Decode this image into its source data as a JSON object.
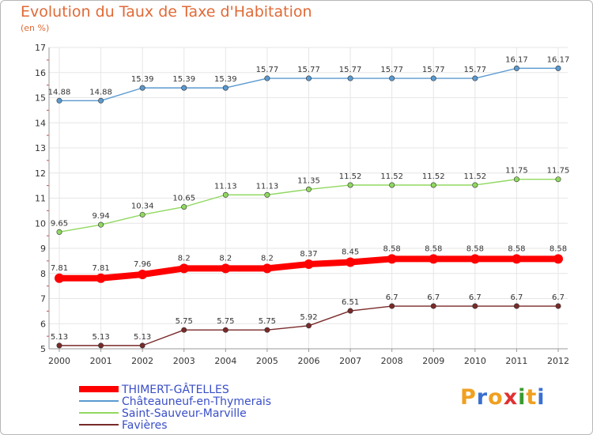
{
  "header": {
    "title": "Evolution du Taux de Taxe d'Habitation",
    "unit": "(en %)"
  },
  "brand": {
    "letters": [
      "P",
      "r",
      "o",
      "x",
      "i",
      "t",
      "i"
    ],
    "colors": [
      "#f0a020",
      "#3a6fd0",
      "#f0a020",
      "#e03030",
      "#3a9a30",
      "#f0a020",
      "#3a6fd0"
    ]
  },
  "chart_data": {
    "type": "line",
    "title": "Evolution du Taux de Taxe d'Habitation",
    "ylabel": "(en %)",
    "xlabel": "",
    "x": [
      "2000",
      "2001",
      "2002",
      "2003",
      "2004",
      "2005",
      "2006",
      "2007",
      "2008",
      "2009",
      "2010",
      "2011",
      "2012"
    ],
    "ylim": [
      5,
      17
    ],
    "yticks": [
      5,
      6,
      7,
      8,
      9,
      10,
      11,
      12,
      13,
      14,
      15,
      16,
      17
    ],
    "grid": true,
    "legend_position": "bottom-left",
    "series": [
      {
        "name": "THIMERT-GÂTELLES",
        "color": "#ff0000",
        "values": [
          7.81,
          7.81,
          7.96,
          8.2,
          8.2,
          8.2,
          8.37,
          8.45,
          8.58,
          8.58,
          8.58,
          8.58,
          8.58
        ],
        "labels": [
          "7.81",
          "7.81",
          "7.96",
          "8.2",
          "8.2",
          "8.2",
          "8.37",
          "8.45",
          "8.58",
          "8.58",
          "8.58",
          "8.58",
          "8.58"
        ],
        "emphasis": true
      },
      {
        "name": "Châteauneuf-en-Thymerais",
        "color": "#5a9ad0",
        "values": [
          14.88,
          14.88,
          15.39,
          15.39,
          15.39,
          15.77,
          15.77,
          15.77,
          15.77,
          15.77,
          15.77,
          16.17,
          16.17
        ],
        "labels": [
          "14.88",
          "14.88",
          "15.39",
          "15.39",
          "15.39",
          "15.77",
          "15.77",
          "15.77",
          "15.77",
          "15.77",
          "15.77",
          "16.17",
          "16.17"
        ],
        "emphasis": false
      },
      {
        "name": "Saint-Sauveur-Marville",
        "color": "#90d860",
        "values": [
          9.65,
          9.94,
          10.34,
          10.65,
          11.13,
          11.13,
          11.35,
          11.52,
          11.52,
          11.52,
          11.52,
          11.75,
          11.75
        ],
        "labels": [
          "9.65",
          "9.94",
          "10.34",
          "10.65",
          "11.13",
          "11.13",
          "11.35",
          "11.52",
          "11.52",
          "11.52",
          "11.52",
          "11.75",
          "11.75"
        ],
        "emphasis": false
      },
      {
        "name": "Favières",
        "color": "#7a2a2a",
        "values": [
          5.13,
          5.13,
          5.13,
          5.75,
          5.75,
          5.75,
          5.92,
          6.51,
          6.7,
          6.7,
          6.7,
          6.7,
          6.7
        ],
        "labels": [
          "5.13",
          "5.13",
          "5.13",
          "5.75",
          "5.75",
          "5.75",
          "5.92",
          "6.51",
          "6.7",
          "6.7",
          "6.7",
          "6.7",
          "6.7"
        ],
        "emphasis": false
      }
    ]
  }
}
